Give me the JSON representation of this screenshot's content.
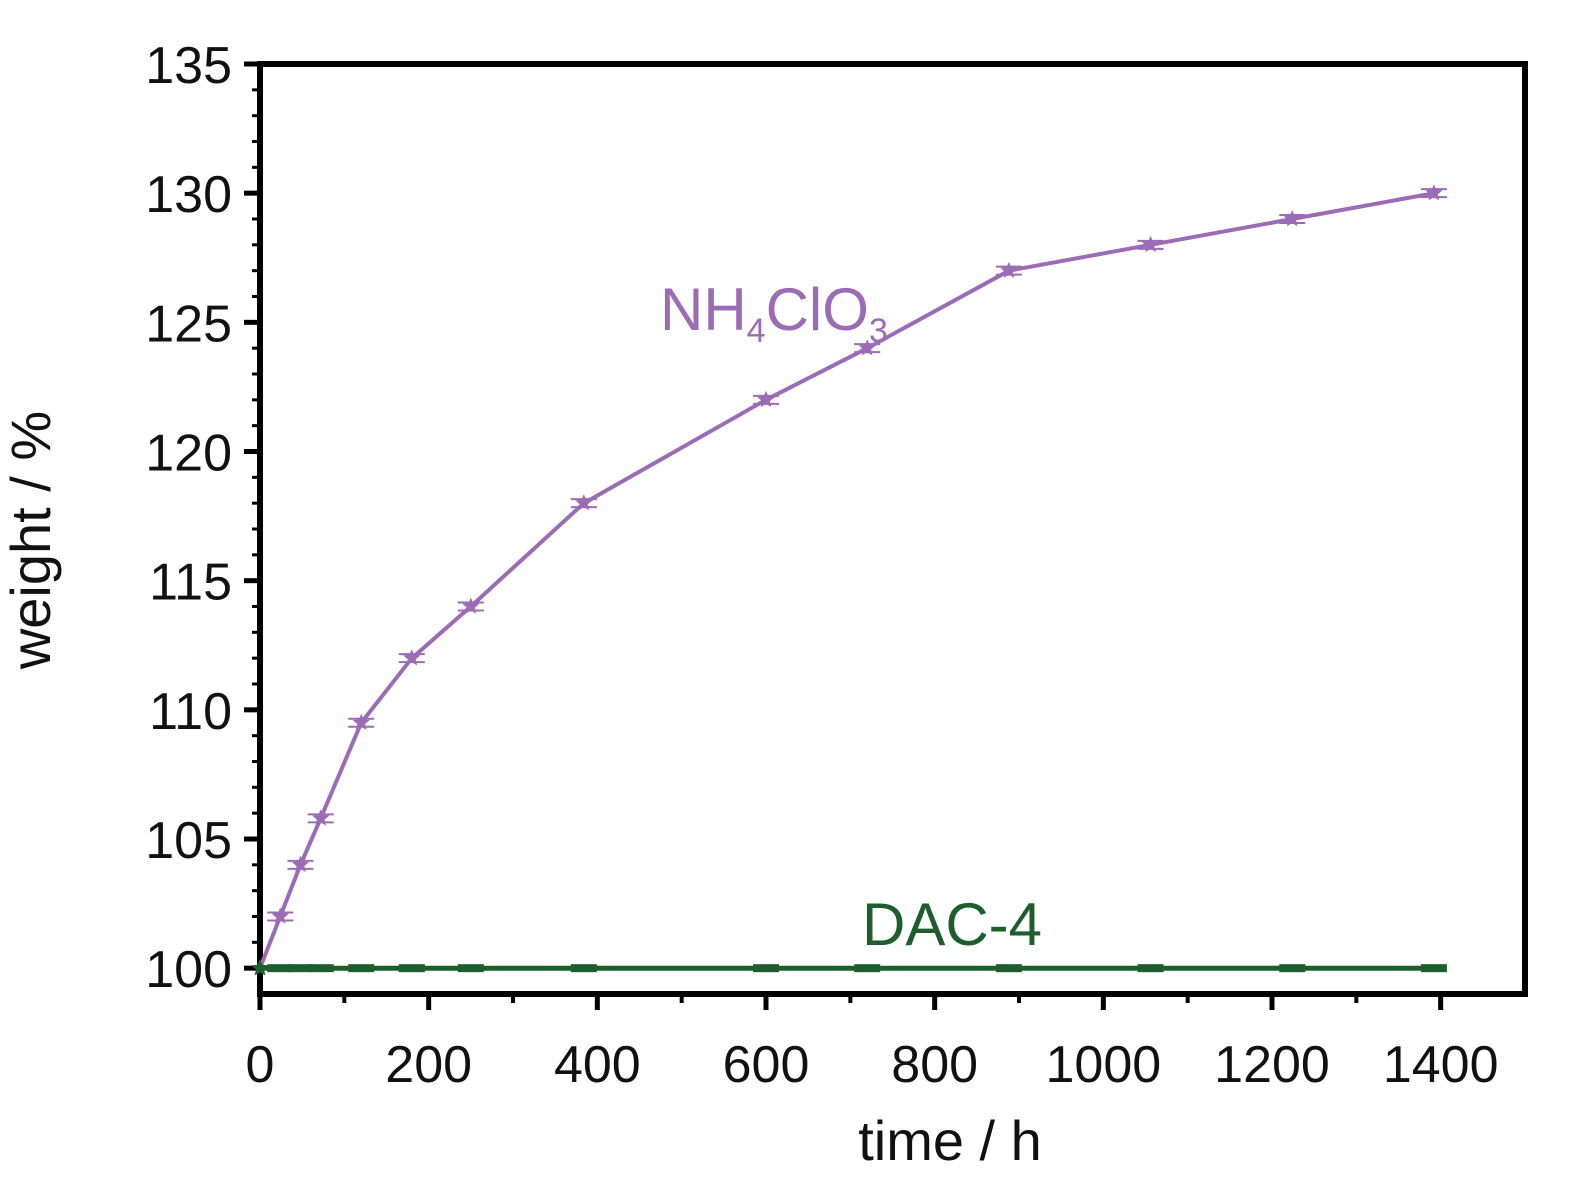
{
  "chart_data": {
    "type": "line",
    "xlabel": "time / h",
    "ylabel": "weight / %",
    "xlim": [
      0,
      1500
    ],
    "ylim": [
      99,
      135
    ],
    "x_ticks": [
      0,
      200,
      400,
      600,
      800,
      1000,
      1200,
      1400
    ],
    "y_ticks": [
      100,
      105,
      110,
      115,
      120,
      125,
      130,
      135
    ],
    "x_tick_labels": [
      "0",
      "200",
      "400",
      "600",
      "800",
      "1000",
      "1200",
      "1400"
    ],
    "y_tick_labels": [
      "100",
      "105",
      "110",
      "115",
      "120",
      "125",
      "130",
      "135"
    ],
    "grid": false,
    "legend": "none",
    "series": [
      {
        "name": "NH4ClO3",
        "label_main": "NH",
        "label_sub1": "4",
        "label_mid": "ClO",
        "label_sub2": "3",
        "color": "#9b6bb5",
        "marker": "star",
        "x": [
          0,
          24,
          48,
          72,
          120,
          180,
          250,
          384,
          600,
          720,
          888,
          1056,
          1224,
          1392
        ],
        "y": [
          100,
          102,
          104,
          105.8,
          109.5,
          112,
          114,
          118,
          122,
          124,
          127,
          128,
          129,
          130
        ]
      },
      {
        "name": "DAC-4",
        "label": "DAC-4",
        "color": "#1e5e2e",
        "marker": "star",
        "x": [
          0,
          24,
          48,
          72,
          120,
          180,
          250,
          384,
          600,
          720,
          888,
          1056,
          1224,
          1392
        ],
        "y": [
          100,
          100,
          100,
          100,
          100,
          100,
          100,
          100,
          100,
          100,
          100,
          100,
          100,
          100
        ]
      }
    ]
  }
}
